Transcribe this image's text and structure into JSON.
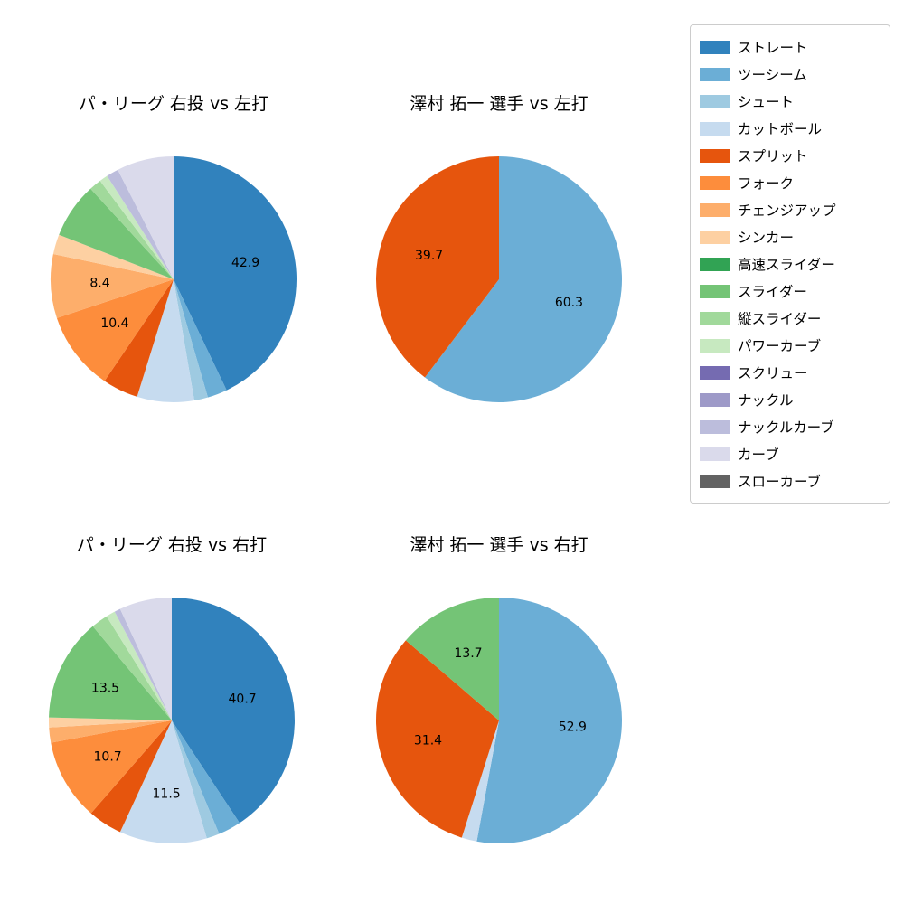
{
  "palette": [
    {
      "name": "ストレート",
      "color": "#3182bd"
    },
    {
      "name": "ツーシーム",
      "color": "#6baed6"
    },
    {
      "name": "シュート",
      "color": "#9ecae1"
    },
    {
      "name": "カットボール",
      "color": "#c6dbef"
    },
    {
      "name": "スプリット",
      "color": "#e6550d"
    },
    {
      "name": "フォーク",
      "color": "#fd8d3c"
    },
    {
      "name": "チェンジアップ",
      "color": "#fdae6b"
    },
    {
      "name": "シンカー",
      "color": "#fdd0a2"
    },
    {
      "name": "高速スライダー",
      "color": "#31a354"
    },
    {
      "name": "スライダー",
      "color": "#74c476"
    },
    {
      "name": "縦スライダー",
      "color": "#a1d99b"
    },
    {
      "name": "パワーカーブ",
      "color": "#c7e9c0"
    },
    {
      "name": "スクリュー",
      "color": "#756bb1"
    },
    {
      "name": "ナックル",
      "color": "#9e9ac8"
    },
    {
      "name": "ナックルカーブ",
      "color": "#bcbddc"
    },
    {
      "name": "カーブ",
      "color": "#dadaeb"
    },
    {
      "name": "スローカーブ",
      "color": "#636363"
    }
  ],
  "chart_style": {
    "label_threshold": 8,
    "label_distance": 0.6,
    "start_angle_deg": 0,
    "direction": "clockwise"
  },
  "chart_data": [
    {
      "type": "pie",
      "title": "パ・リーグ 右投 vs 左打",
      "slices": [
        {
          "name": "ストレート",
          "value": 42.9
        },
        {
          "name": "ツーシーム",
          "value": 2.6
        },
        {
          "name": "シュート",
          "value": 1.8
        },
        {
          "name": "カットボール",
          "value": 7.5
        },
        {
          "name": "スプリット",
          "value": 4.7
        },
        {
          "name": "フォーク",
          "value": 10.4
        },
        {
          "name": "チェンジアップ",
          "value": 8.4
        },
        {
          "name": "シンカー",
          "value": 2.6
        },
        {
          "name": "スライダー",
          "value": 7.3
        },
        {
          "name": "縦スライダー",
          "value": 1.6
        },
        {
          "name": "パワーカーブ",
          "value": 1.1
        },
        {
          "name": "ナックルカーブ",
          "value": 1.6
        },
        {
          "name": "カーブ",
          "value": 7.5
        }
      ]
    },
    {
      "type": "pie",
      "title": "澤村 拓一 選手 vs 左打",
      "slices": [
        {
          "name": "ツーシーム",
          "value": 60.3
        },
        {
          "name": "スプリット",
          "value": 39.7
        }
      ]
    },
    {
      "type": "pie",
      "title": "パ・リーグ 右投 vs 右打",
      "slices": [
        {
          "name": "ストレート",
          "value": 40.7
        },
        {
          "name": "ツーシーム",
          "value": 3.0
        },
        {
          "name": "シュート",
          "value": 1.7
        },
        {
          "name": "カットボール",
          "value": 11.5
        },
        {
          "name": "スプリット",
          "value": 4.5
        },
        {
          "name": "フォーク",
          "value": 10.7
        },
        {
          "name": "チェンジアップ",
          "value": 2.0
        },
        {
          "name": "シンカー",
          "value": 1.3
        },
        {
          "name": "スライダー",
          "value": 13.5
        },
        {
          "name": "縦スライダー",
          "value": 2.2
        },
        {
          "name": "パワーカーブ",
          "value": 1.2
        },
        {
          "name": "ナックルカーブ",
          "value": 0.8
        },
        {
          "name": "カーブ",
          "value": 6.9
        }
      ]
    },
    {
      "type": "pie",
      "title": "澤村 拓一 選手 vs 右打",
      "slices": [
        {
          "name": "ツーシーム",
          "value": 52.9
        },
        {
          "name": "カットボール",
          "value": 2.0
        },
        {
          "name": "スプリット",
          "value": 31.4
        },
        {
          "name": "スライダー",
          "value": 13.7
        }
      ]
    }
  ]
}
